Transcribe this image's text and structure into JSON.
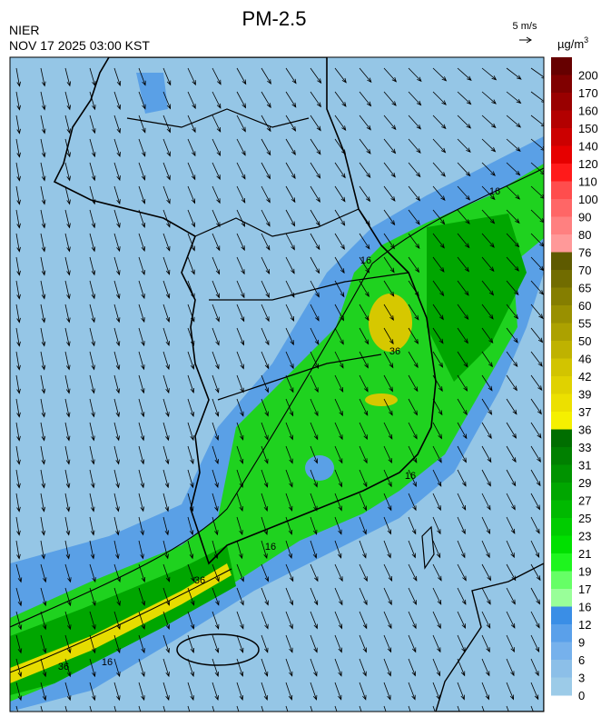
{
  "header": {
    "title": "PM-2.5",
    "agency": "NIER",
    "datetime": "NOV 17 2025 03:00 KST",
    "wind_scale": "5 m/s",
    "unit": {
      "base": "µg/m",
      "sup": "3"
    }
  },
  "colorbar": {
    "labels": [
      200,
      170,
      160,
      150,
      140,
      120,
      110,
      100,
      90,
      80,
      76,
      70,
      65,
      60,
      55,
      50,
      46,
      42,
      39,
      37,
      36,
      33,
      31,
      29,
      27,
      25,
      23,
      21,
      19,
      17,
      16,
      12,
      9,
      6,
      3,
      0
    ],
    "colors": [
      "#660000",
      "#800000",
      "#990000",
      "#b30000",
      "#cc0000",
      "#e60000",
      "#ff1a1a",
      "#ff4d4d",
      "#ff6666",
      "#ff8080",
      "#ff9999",
      "#5e5a00",
      "#716c00",
      "#857e00",
      "#999000",
      "#aca100",
      "#bfb200",
      "#d2c400",
      "#e0d200",
      "#ece000",
      "#f5f000",
      "#006e00",
      "#008000",
      "#009300",
      "#00a600",
      "#00b900",
      "#00cc00",
      "#00e000",
      "#1ef51e",
      "#66ff66",
      "#99ff99",
      "#3a8ee6",
      "#5aa0ea",
      "#76b1ec",
      "#8cbfe8",
      "#9ccbe8"
    ]
  },
  "contour_labels": [
    "16",
    "16",
    "16",
    "16",
    "16",
    "36",
    "36",
    "36"
  ]
}
